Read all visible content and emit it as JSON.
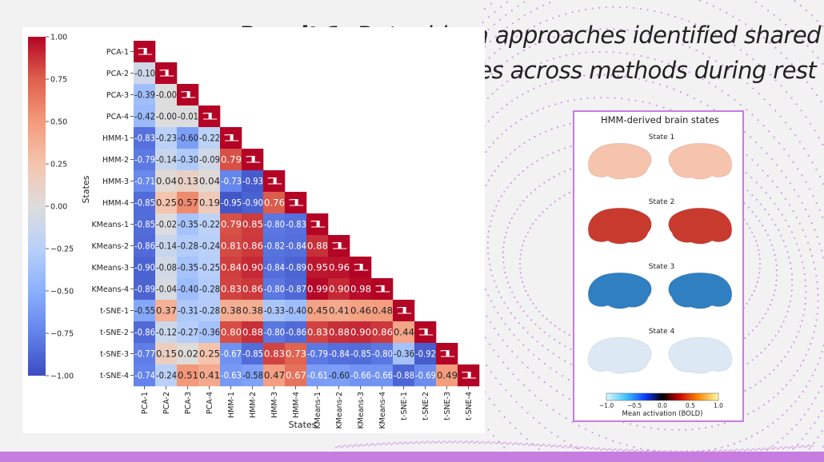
{
  "title": {
    "bold": "Result 1:",
    "line1": " Data-driven approaches identified shared",
    "line2": "and unique brain states across methods during rest"
  },
  "chart_data": [
    {
      "type": "heatmap",
      "xlabel": "States",
      "ylabel": "States",
      "labels": [
        "PCA-1",
        "PCA-2",
        "PCA-3",
        "PCA-4",
        "HMM-1",
        "HMM-2",
        "HMM-3",
        "HMM-4",
        "KMeans-1",
        "KMeans-2",
        "KMeans-3",
        "KMeans-4",
        "t-SNE-1",
        "t-SNE-2",
        "t-SNE-3",
        "t-SNE-4"
      ],
      "values": [
        [
          "1"
        ],
        [
          "-0.10",
          "1"
        ],
        [
          "-0.39",
          "-0.00",
          "1"
        ],
        [
          "-0.42",
          "-0.00",
          "-0.01",
          "1"
        ],
        [
          "-0.83",
          "-0.23",
          "-0.60",
          "-0.22",
          "1"
        ],
        [
          "-0.79",
          "-0.14",
          "-0.30",
          "-0.09",
          "0.79",
          "1"
        ],
        [
          "-0.71",
          "0.04",
          "0.13",
          "0.04",
          "-0.73",
          "-0.93",
          "1"
        ],
        [
          "-0.85",
          "0.25",
          "0.57",
          "0.19",
          "-0.95",
          "-0.90",
          "0.76",
          "1"
        ],
        [
          "-0.85",
          "-0.02",
          "-0.35",
          "-0.22",
          "0.79",
          "0.85",
          "-0.80",
          "-0.83",
          "1"
        ],
        [
          "-0.86",
          "-0.14",
          "-0.28",
          "-0.24",
          "0.81",
          "0.86",
          "-0.82",
          "-0.84",
          "0.88",
          "1"
        ],
        [
          "-0.90",
          "-0.08",
          "-0.35",
          "-0.25",
          "0.84",
          "0.90",
          "-0.84",
          "-0.89",
          "0.95",
          "0.96",
          "1"
        ],
        [
          "-0.89",
          "-0.04",
          "-0.40",
          "-0.28",
          "0.83",
          "0.86",
          "-0.80",
          "-0.87",
          "0.99",
          "0.90",
          "0.98",
          "1"
        ],
        [
          "-0.55",
          "0.37",
          "-0.31",
          "-0.28",
          "0.38",
          "0.38",
          "-0.33",
          "-0.40",
          "0.45",
          "0.41",
          "0.46",
          "0.48",
          "1"
        ],
        [
          "-0.86",
          "-0.12",
          "-0.27",
          "-0.36",
          "0.80",
          "0.88",
          "-0.80",
          "-0.86",
          "0.83",
          "0.88",
          "0.90",
          "0.86",
          "0.44",
          "1"
        ],
        [
          "-0.77",
          "0.15",
          "0.02",
          "0.25",
          "-0.67",
          "-0.85",
          "0.83",
          "0.73",
          "-0.79",
          "-0.84",
          "-0.85",
          "-0.80",
          "-0.36",
          "-0.92",
          "1"
        ],
        [
          "-0.74",
          "-0.24",
          "0.51",
          "0.41",
          "-0.63",
          "-0.58",
          "0.47",
          "0.67",
          "-0.61",
          "-0.60",
          "-0.66",
          "-0.66",
          "-0.88",
          "-0.69",
          "0.49",
          "1"
        ]
      ],
      "colorbar": {
        "range": [
          -1.0,
          1.0
        ],
        "ticks": [
          "1.00",
          "0.75",
          "0.50",
          "0.25",
          "0.00",
          "−0.25",
          "−0.50",
          "−0.75",
          "−1.00"
        ]
      },
      "colormap": "coolwarm"
    },
    {
      "type": "other",
      "title": "HMM-derived brain states",
      "states": [
        {
          "label": "State 1",
          "activation": 0.25,
          "color": "#f6c3ad"
        },
        {
          "label": "State 2",
          "activation": 0.75,
          "color": "#c93a2e"
        },
        {
          "label": "State 3",
          "activation": -0.75,
          "color": "#2f7fc1"
        },
        {
          "label": "State 4",
          "activation": -0.1,
          "color": "#dce9f5"
        }
      ],
      "colorbar": {
        "ticks": [
          "−1.0",
          "−0.5",
          "0.0",
          "0.5",
          "1.0"
        ],
        "label": "Mean activation (BOLD)",
        "range": [
          -1.0,
          1.0
        ]
      }
    }
  ],
  "colors": {
    "accent": "#c77ce0",
    "background": "#f2f2f2"
  }
}
